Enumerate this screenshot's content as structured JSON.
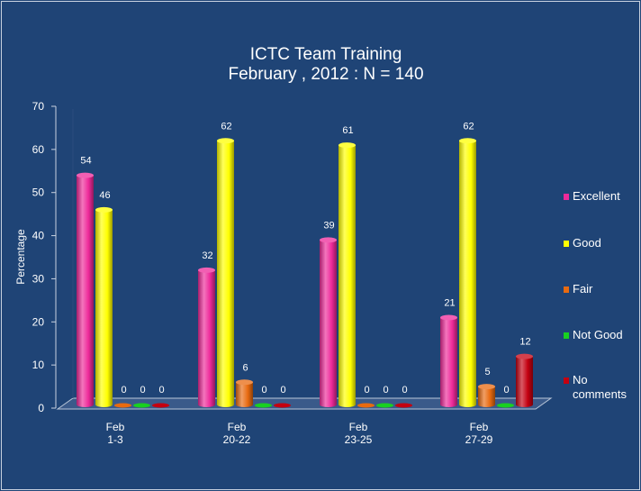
{
  "chart_data": {
    "type": "bar",
    "title": [
      "ICTC Team Training",
      "February , 2012 : N = 140"
    ],
    "ylabel": "Percentage",
    "xlabel": "",
    "ylim": [
      0,
      70
    ],
    "yticks": [
      0,
      10,
      20,
      30,
      40,
      50,
      60,
      70
    ],
    "categories": [
      [
        "Feb",
        "1-3"
      ],
      [
        "Feb",
        "20-22"
      ],
      [
        "Feb",
        "23-25"
      ],
      [
        "Feb",
        "27-29"
      ]
    ],
    "series": [
      {
        "name": "Excellent",
        "color": "#ee2a9a",
        "values": [
          54,
          32,
          39,
          21
        ]
      },
      {
        "name": "Good",
        "color": "#ffff00",
        "values": [
          46,
          62,
          61,
          62
        ]
      },
      {
        "name": "Fair",
        "color": "#e86a10",
        "values": [
          0,
          6,
          0,
          5
        ]
      },
      {
        "name": "Not Good",
        "color": "#18d020",
        "values": [
          0,
          0,
          0,
          0
        ]
      },
      {
        "name": "No comments",
        "color": "#c40010",
        "values": [
          0,
          0,
          0,
          12
        ]
      }
    ],
    "data_labels": [
      [
        "54",
        "46",
        "0",
        "0",
        "0"
      ],
      [
        "32",
        "62",
        "6",
        "0",
        "0"
      ],
      [
        "39",
        "61",
        "0",
        "0",
        "0"
      ],
      [
        "21",
        "62",
        "5",
        "0",
        "12"
      ]
    ],
    "legend_position": "right",
    "grid": false,
    "style": "3d-cylinder"
  }
}
